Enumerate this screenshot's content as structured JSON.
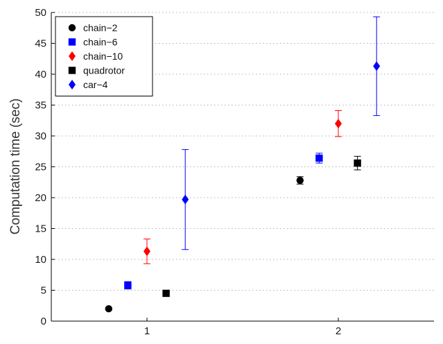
{
  "chart_data": {
    "type": "scatter",
    "title": "",
    "xlabel": "",
    "ylabel": "Computation time (sec)",
    "xlim": [
      0.5,
      2.5
    ],
    "ylim": [
      0,
      50
    ],
    "x_ticks": [
      1,
      2
    ],
    "x_tick_labels": [
      "1",
      "2"
    ],
    "y_ticks": [
      0,
      5,
      10,
      15,
      20,
      25,
      30,
      35,
      40,
      45,
      50
    ],
    "y_tick_labels": [
      "0",
      "5",
      "10",
      "15",
      "20",
      "25",
      "30",
      "35",
      "40",
      "45",
      "50"
    ],
    "grid": "horizontal dotted",
    "legend_position": "top-left",
    "series": [
      {
        "name": "chain−2",
        "marker": "circle",
        "color": "#000000",
        "points": [
          {
            "x": 0.8,
            "y": 2.0,
            "err": 0.2
          },
          {
            "x": 1.8,
            "y": 22.8,
            "err": 0.6
          }
        ]
      },
      {
        "name": "chain−6",
        "marker": "square",
        "color": "#0000ff",
        "points": [
          {
            "x": 0.9,
            "y": 5.8,
            "err": 0.6
          },
          {
            "x": 1.9,
            "y": 26.4,
            "err": 0.8
          }
        ]
      },
      {
        "name": "chain−10",
        "marker": "diamond",
        "color": "#ff0000",
        "points": [
          {
            "x": 1.0,
            "y": 11.3,
            "err": 2.0
          },
          {
            "x": 2.0,
            "y": 32.0,
            "err": 2.1
          }
        ]
      },
      {
        "name": "quadrotor",
        "marker": "square",
        "color": "#000000",
        "points": [
          {
            "x": 1.1,
            "y": 4.5,
            "err": 0.5
          },
          {
            "x": 2.1,
            "y": 25.6,
            "err": 1.1
          }
        ]
      },
      {
        "name": "car−4",
        "marker": "diamond",
        "color": "#0000ff",
        "points": [
          {
            "x": 1.2,
            "y": 19.7,
            "err": 8.1
          },
          {
            "x": 2.2,
            "y": 41.3,
            "err": 8.0
          }
        ]
      }
    ]
  }
}
